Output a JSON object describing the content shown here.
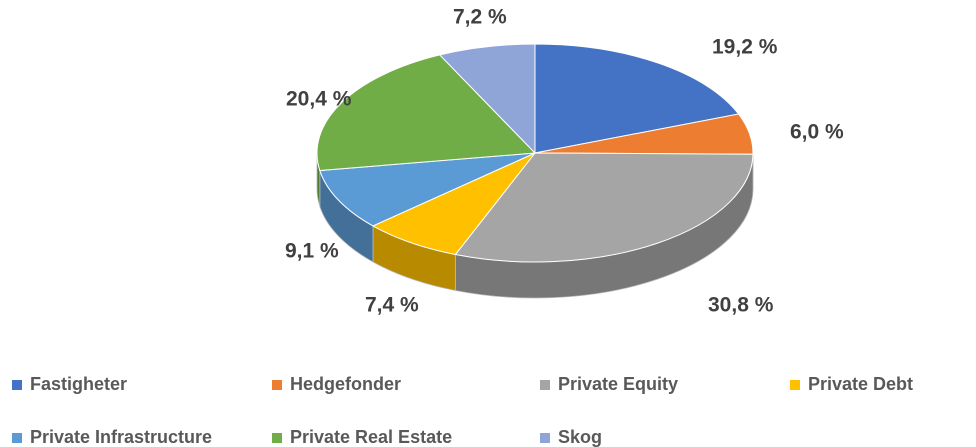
{
  "chart_data": {
    "type": "pie3d",
    "categories": [
      "Fastigheter",
      "Hedgefonder",
      "Private Equity",
      "Private Debt",
      "Private Infrastructure",
      "Private Real Estate",
      "Skog"
    ],
    "values": [
      19.2,
      6.0,
      30.8,
      7.4,
      9.1,
      20.4,
      7.2
    ],
    "value_labels": [
      "19,2 %",
      "6,0 %",
      "30,8 %",
      "7,4 %",
      "9,1 %",
      "20,4 %",
      "7,2 %"
    ],
    "colors": [
      "#4472c4",
      "#ed7d31",
      "#a5a5a5",
      "#ffc000",
      "#5b9bd5",
      "#70ad47",
      "#8fa5d8"
    ],
    "legend": "bottom"
  }
}
